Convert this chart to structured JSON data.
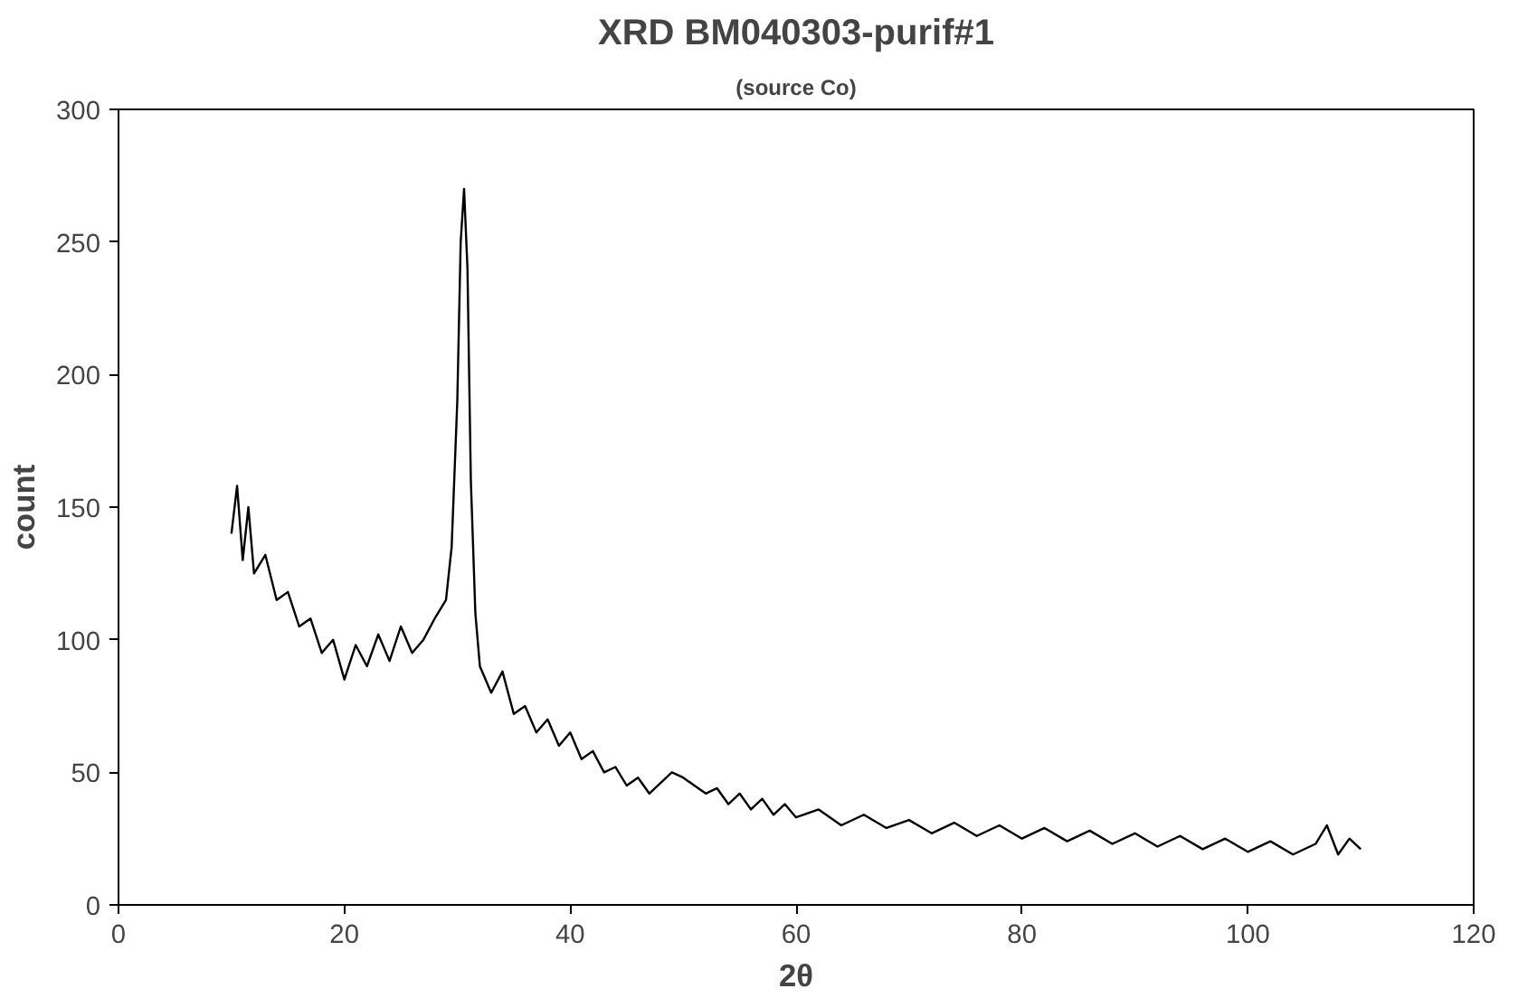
{
  "chart_data": {
    "type": "line",
    "title": "XRD BM040303-purif#1",
    "subtitle": "(source Co)",
    "xlabel": "2θ",
    "ylabel": "count",
    "xlim": [
      0,
      120
    ],
    "xticks": [
      0,
      20,
      40,
      60,
      80,
      100,
      120
    ],
    "ylim": [
      0,
      300
    ],
    "yticks": [
      0,
      50,
      100,
      150,
      200,
      250,
      300
    ],
    "marker": "none",
    "line_style": "solid",
    "series": [
      {
        "color": "#000000",
        "x": [
          10,
          10.5,
          11,
          11.5,
          12,
          13,
          14,
          15,
          16,
          17,
          18,
          19,
          20,
          21,
          22,
          23,
          24,
          25,
          26,
          27,
          28,
          29,
          29.5,
          30,
          30.3,
          30.6,
          30.9,
          31.2,
          31.6,
          32,
          33,
          34,
          35,
          36,
          37,
          38,
          39,
          40,
          41,
          42,
          43,
          44,
          45,
          46,
          47,
          48,
          49,
          50,
          51,
          52,
          53,
          54,
          55,
          56,
          57,
          58,
          59,
          60,
          62,
          64,
          66,
          68,
          70,
          72,
          74,
          76,
          78,
          80,
          82,
          84,
          86,
          88,
          90,
          92,
          94,
          96,
          98,
          100,
          102,
          104,
          106,
          107,
          108,
          109,
          110
        ],
        "values": [
          140,
          158,
          130,
          150,
          125,
          132,
          115,
          118,
          105,
          108,
          95,
          100,
          85,
          98,
          90,
          102,
          92,
          105,
          95,
          100,
          108,
          115,
          135,
          190,
          250,
          270,
          240,
          160,
          110,
          90,
          80,
          88,
          72,
          75,
          65,
          70,
          60,
          65,
          55,
          58,
          50,
          52,
          45,
          48,
          42,
          46,
          50,
          48,
          45,
          42,
          44,
          38,
          42,
          36,
          40,
          34,
          38,
          33,
          36,
          30,
          34,
          29,
          32,
          27,
          31,
          26,
          30,
          25,
          29,
          24,
          28,
          23,
          27,
          22,
          26,
          21,
          25,
          20,
          24,
          19,
          23,
          30,
          19,
          25,
          21
        ]
      }
    ]
  }
}
